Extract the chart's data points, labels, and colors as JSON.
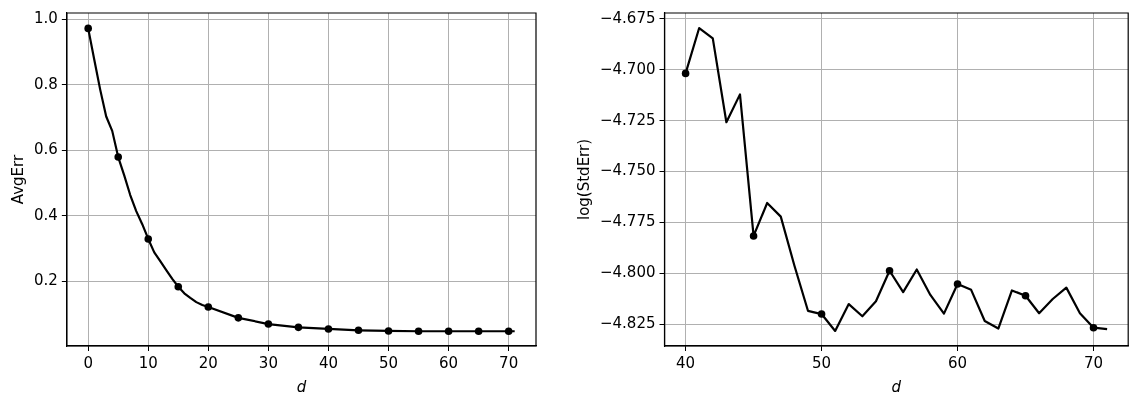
{
  "chart_data": [
    {
      "type": "line",
      "xlabel": "d",
      "ylabel": "AvgErr",
      "grid": true,
      "xlim": [
        -3.55,
        74.55
      ],
      "xticks": [
        0,
        10,
        20,
        30,
        40,
        50,
        60,
        70
      ],
      "ylim": [
        0.002,
        1.019
      ],
      "yticks": [
        {
          "value": 0.2,
          "label": "0.2"
        },
        {
          "value": 0.4,
          "label": "0.4"
        },
        {
          "value": 0.6,
          "label": "0.6"
        },
        {
          "value": 0.8,
          "label": "0.8"
        },
        {
          "value": 1.0,
          "label": "1.0"
        }
      ],
      "series": [
        {
          "type": "line",
          "marker": "none",
          "color": "#000000",
          "x": [
            0,
            1,
            2,
            3,
            4,
            5,
            6,
            7,
            8,
            9,
            10,
            11,
            12,
            13,
            14,
            15,
            16,
            17,
            18,
            19,
            20,
            25,
            30,
            35,
            40,
            45,
            50,
            55,
            60,
            65,
            70,
            71
          ],
          "values": [
            0.972,
            0.878,
            0.785,
            0.703,
            0.659,
            0.579,
            0.523,
            0.463,
            0.414,
            0.374,
            0.329,
            0.288,
            0.261,
            0.234,
            0.207,
            0.183,
            0.163,
            0.149,
            0.136,
            0.127,
            0.121,
            0.088,
            0.069,
            0.059,
            0.054,
            0.05,
            0.048,
            0.047,
            0.047,
            0.047,
            0.047,
            0.047
          ]
        },
        {
          "type": "scatter",
          "marker": "circle",
          "color": "#000000",
          "x": [
            0,
            5,
            10,
            15,
            20,
            25,
            30,
            35,
            40,
            45,
            50,
            55,
            60,
            65,
            70
          ],
          "values": [
            0.972,
            0.579,
            0.329,
            0.183,
            0.121,
            0.088,
            0.069,
            0.059,
            0.054,
            0.05,
            0.048,
            0.047,
            0.047,
            0.047,
            0.047
          ]
        }
      ]
    },
    {
      "type": "line",
      "xlabel": "d",
      "ylabel": "log(StdErr)",
      "grid": true,
      "xlim": [
        38.45,
        72.55
      ],
      "xticks": [
        40,
        50,
        60,
        70
      ],
      "ylim": [
        -4.8358,
        -4.6721
      ],
      "yticks": [
        {
          "value": -4.825,
          "label": "−4.825"
        },
        {
          "value": -4.8,
          "label": "−4.800"
        },
        {
          "value": -4.775,
          "label": "−4.775"
        },
        {
          "value": -4.75,
          "label": "−4.750"
        },
        {
          "value": -4.725,
          "label": "−4.725"
        },
        {
          "value": -4.7,
          "label": "−4.700"
        },
        {
          "value": -4.675,
          "label": "−4.675"
        }
      ],
      "series": [
        {
          "type": "line",
          "marker": "none",
          "color": "#000000",
          "x": [
            40,
            41,
            42,
            43,
            44,
            45,
            46,
            47,
            48,
            49,
            50,
            51,
            52,
            53,
            54,
            55,
            56,
            57,
            58,
            59,
            60,
            61,
            62,
            63,
            64,
            65,
            66,
            67,
            68,
            69,
            70,
            71
          ],
          "values": [
            -4.7018,
            -4.6795,
            -4.6846,
            -4.7258,
            -4.7121,
            -4.7817,
            -4.7655,
            -4.7722,
            -4.7962,
            -4.8185,
            -4.8201,
            -4.8284,
            -4.8152,
            -4.8212,
            -4.8138,
            -4.7988,
            -4.8093,
            -4.7982,
            -4.8107,
            -4.8199,
            -4.8053,
            -4.8082,
            -4.8235,
            -4.8272,
            -4.8085,
            -4.8111,
            -4.8197,
            -4.8127,
            -4.8071,
            -4.8197,
            -4.8268,
            -4.8275
          ]
        },
        {
          "type": "scatter",
          "marker": "circle",
          "color": "#000000",
          "x": [
            40,
            45,
            50,
            55,
            60,
            65,
            70
          ],
          "values": [
            -4.7018,
            -4.7817,
            -4.8201,
            -4.7988,
            -4.8053,
            -4.8111,
            -4.8268
          ]
        }
      ]
    }
  ]
}
